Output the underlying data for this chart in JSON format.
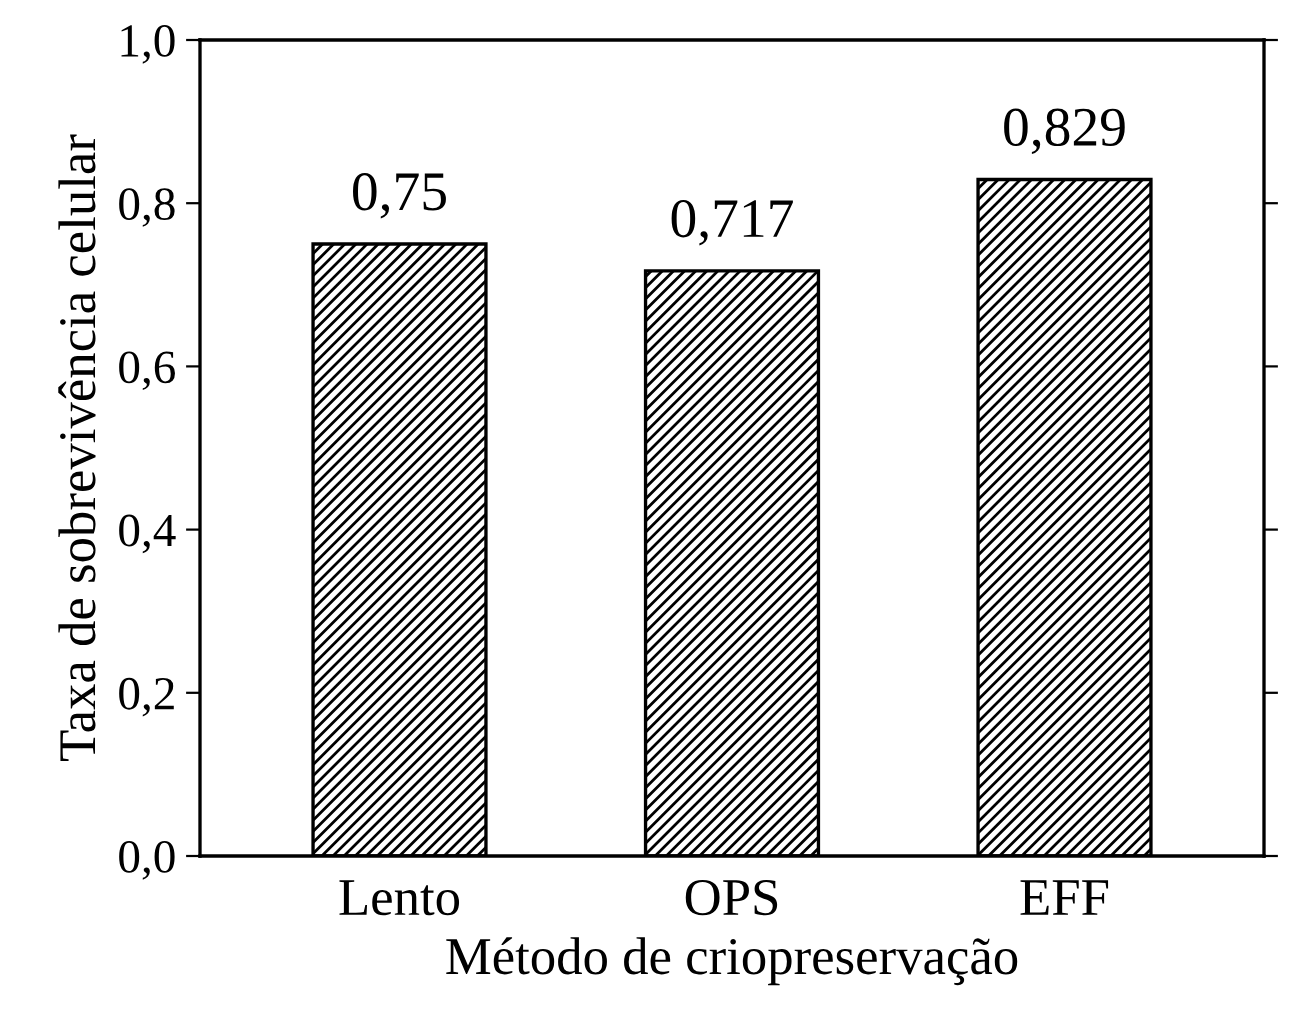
{
  "chart_data": {
    "type": "bar",
    "xlabel": "Método de criopreservação",
    "ylabel": "Taxa de sobrevivência celular",
    "categories": [
      "Lento",
      "OPS",
      "EFF"
    ],
    "values": [
      0.75,
      0.717,
      0.829
    ],
    "value_labels": [
      "0,75",
      "0,717",
      "0,829"
    ],
    "color": "#000000",
    "ylim": [
      0,
      1
    ],
    "yticks": [
      {
        "value": 0,
        "label": "0,0"
      },
      {
        "value": 0.2,
        "label": "0,2"
      },
      {
        "value": 0.4,
        "label": "0,4"
      },
      {
        "value": 0.6,
        "label": "0,6"
      },
      {
        "value": 0.8,
        "label": "0,8"
      },
      {
        "value": 1,
        "label": "1,0"
      }
    ],
    "grid": false
  }
}
